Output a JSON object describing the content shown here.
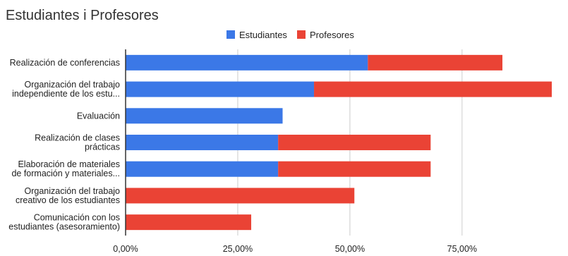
{
  "chart_data": {
    "type": "bar",
    "orientation": "horizontal",
    "stacked": true,
    "title": "Estudiantes i Profesores",
    "legend_position": "top-center",
    "grid": true,
    "xlim": [
      0,
      0.95
    ],
    "x_ticks": [
      {
        "value": 0,
        "label": "0,00%"
      },
      {
        "value": 0.25,
        "label": "25,00%"
      },
      {
        "value": 0.5,
        "label": "50,00%"
      },
      {
        "value": 0.75,
        "label": "75,00%"
      }
    ],
    "categories": [
      [
        "Realización de conferencias"
      ],
      [
        "Organización del trabajo",
        "independiente de los estu..."
      ],
      [
        "Evaluación"
      ],
      [
        "Realización de clases",
        "prácticas"
      ],
      [
        "Elaboración de materiales",
        "de formación y materiales..."
      ],
      [
        "Organización del trabajo",
        "creativo de los estudiantes"
      ],
      [
        "Comunicación con los",
        "estudiantes (asesoramiento)"
      ]
    ],
    "series": [
      {
        "name": "Estudiantes",
        "color": "#3b78e7",
        "values": [
          0.54,
          0.42,
          0.35,
          0.34,
          0.34,
          0,
          0
        ]
      },
      {
        "name": "Profesores",
        "color": "#ea4335",
        "values": [
          0.3,
          0.53,
          0,
          0.34,
          0.34,
          0.51,
          0.28
        ]
      }
    ]
  }
}
